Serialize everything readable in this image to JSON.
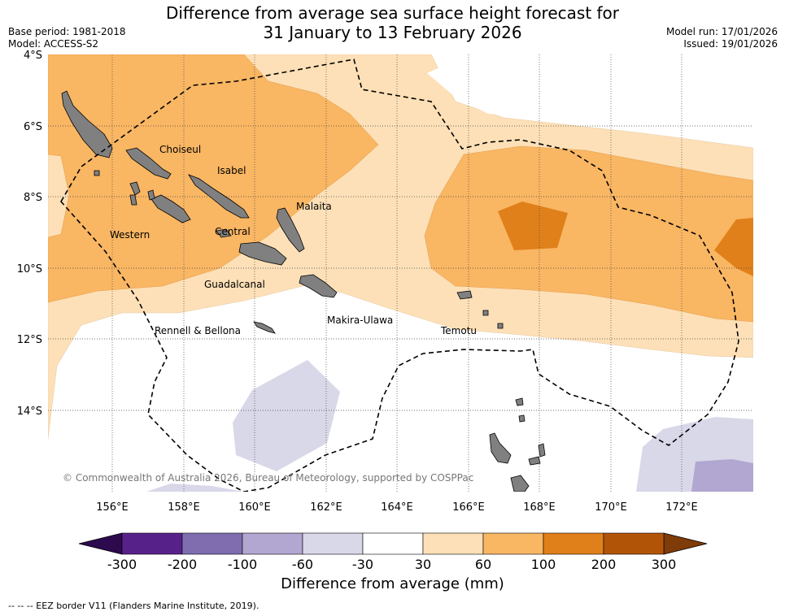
{
  "header": {
    "title_line1": "Difference from average sea surface height forecast for",
    "title_line2": "31 January to 13 February 2026",
    "base_period": "Base period: 1981-2018",
    "model": "Model: ACCESS-S2",
    "model_run": "Model run: 17/01/2026",
    "issued": "Issued: 19/01/2026"
  },
  "map": {
    "lat_ticks": [
      "4°S",
      "6°S",
      "8°S",
      "10°S",
      "12°S",
      "14°S"
    ],
    "lon_ticks": [
      "156°E",
      "158°E",
      "160°E",
      "162°E",
      "164°E",
      "166°E",
      "168°E",
      "170°E",
      "172°E"
    ],
    "places": [
      "Choiseul",
      "Isabel",
      "Malaita",
      "Western",
      "Central",
      "Guadalcanal",
      "Rennell & Bellona",
      "Makira-Ulawa",
      "Temotu"
    ],
    "copyright": "© Commonwealth of Australia 2026, Bureau of Meteorology, supported by COSPPac"
  },
  "colorbar": {
    "tick_labels": [
      "-300",
      "-200",
      "-100",
      "-60",
      "-30",
      "30",
      "60",
      "100",
      "200",
      "300"
    ],
    "colors": [
      "#57218a",
      "#7f6db0",
      "#b1a7d1",
      "#d8d8e9",
      "#ffffff",
      "#fde0b7",
      "#f9b663",
      "#e0801a",
      "#b25408"
    ],
    "extend_low_color": "#2d0a4e",
    "extend_high_color": "#7f3b08",
    "title": "Difference from average (mm)"
  },
  "footer": {
    "eez_note": "--  --  -- EEZ border V11 (Flanders Marine Institute, 2019)."
  }
}
